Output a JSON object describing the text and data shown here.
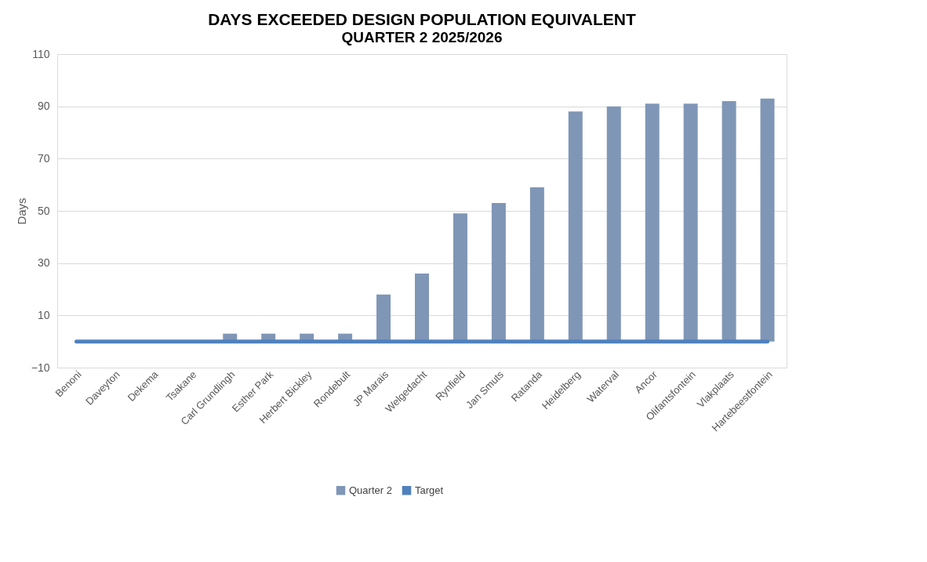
{
  "chart_data": {
    "type": "bar",
    "title": "DAYS EXCEEDED DESIGN POPULATION EQUIVALENT",
    "subtitle": "QUARTER 2 2025/2026",
    "ylabel": "Days",
    "categories": [
      "Benoni",
      "Daveyton",
      "Dekema",
      "Tsakane",
      "Carl Grundlingh",
      "Esther Park",
      "Herbert Bickley",
      "Rondebult",
      "JP Marais",
      "Welgedacht",
      "Rynfield",
      "Jan Smuts",
      "Ratanda",
      "Heidelberg",
      "Waterval",
      "Ancor",
      "Olifantsfontein",
      "Vlakplaats",
      "Hartebeestfontein"
    ],
    "series": [
      {
        "name": "Quarter 2",
        "color": "#7f96b6",
        "values": [
          0,
          0,
          0,
          0,
          3,
          3,
          3,
          3,
          18,
          26,
          49,
          53,
          59,
          88,
          90,
          91,
          91,
          92,
          93
        ]
      },
      {
        "name": "Target",
        "type": "line",
        "color": "#4f81bd",
        "values": [
          0,
          0,
          0,
          0,
          0,
          0,
          0,
          0,
          0,
          0,
          0,
          0,
          0,
          0,
          0,
          0,
          0,
          0,
          0
        ]
      }
    ],
    "ylim": [
      -10,
      110
    ],
    "yticks": [
      -10,
      10,
      30,
      50,
      70,
      90,
      110
    ],
    "grid": "y",
    "legend": "bottom"
  }
}
